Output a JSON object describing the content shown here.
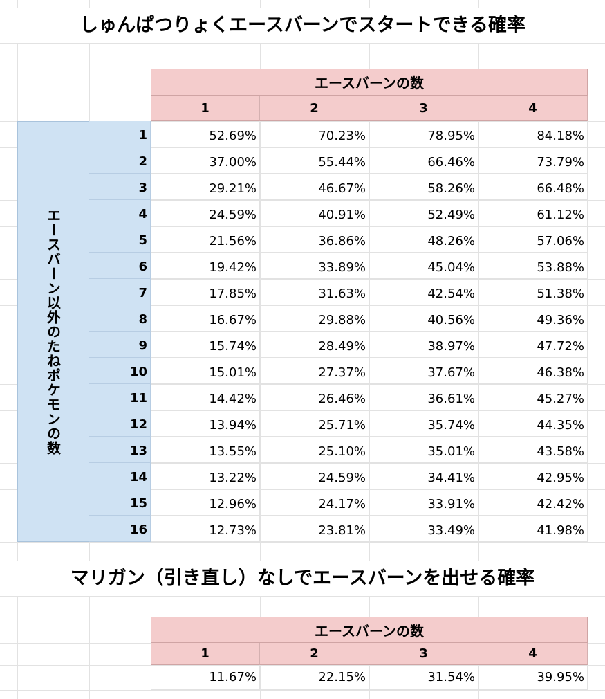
{
  "title1": "しゅんぱつりょくエースバーンでスタートできる確率",
  "table1": {
    "col_header": "エースバーンの数",
    "cols": [
      "1",
      "2",
      "3",
      "4"
    ],
    "row_header": "エースバーン以外のたねポケモンの数",
    "rows": [
      {
        "label": "1",
        "values": [
          "52.69%",
          "70.23%",
          "78.95%",
          "84.18%"
        ]
      },
      {
        "label": "2",
        "values": [
          "37.00%",
          "55.44%",
          "66.46%",
          "73.79%"
        ]
      },
      {
        "label": "3",
        "values": [
          "29.21%",
          "46.67%",
          "58.26%",
          "66.48%"
        ]
      },
      {
        "label": "4",
        "values": [
          "24.59%",
          "40.91%",
          "52.49%",
          "61.12%"
        ]
      },
      {
        "label": "5",
        "values": [
          "21.56%",
          "36.86%",
          "48.26%",
          "57.06%"
        ]
      },
      {
        "label": "6",
        "values": [
          "19.42%",
          "33.89%",
          "45.04%",
          "53.88%"
        ]
      },
      {
        "label": "7",
        "values": [
          "17.85%",
          "31.63%",
          "42.54%",
          "51.38%"
        ]
      },
      {
        "label": "8",
        "values": [
          "16.67%",
          "29.88%",
          "40.56%",
          "49.36%"
        ]
      },
      {
        "label": "9",
        "values": [
          "15.74%",
          "28.49%",
          "38.97%",
          "47.72%"
        ]
      },
      {
        "label": "10",
        "values": [
          "15.01%",
          "27.37%",
          "37.67%",
          "46.38%"
        ]
      },
      {
        "label": "11",
        "values": [
          "14.42%",
          "26.46%",
          "36.61%",
          "45.27%"
        ]
      },
      {
        "label": "12",
        "values": [
          "13.94%",
          "25.71%",
          "35.74%",
          "44.35%"
        ]
      },
      {
        "label": "13",
        "values": [
          "13.55%",
          "25.10%",
          "35.01%",
          "43.58%"
        ]
      },
      {
        "label": "14",
        "values": [
          "13.22%",
          "24.59%",
          "34.41%",
          "42.95%"
        ]
      },
      {
        "label": "15",
        "values": [
          "12.96%",
          "24.17%",
          "33.91%",
          "42.42%"
        ]
      },
      {
        "label": "16",
        "values": [
          "12.73%",
          "23.81%",
          "33.49%",
          "41.98%"
        ]
      }
    ]
  },
  "title2": "マリガン（引き直し）なしでエースバーンを出せる確率",
  "table2": {
    "col_header": "エースバーンの数",
    "cols": [
      "1",
      "2",
      "3",
      "4"
    ],
    "values": [
      "11.67%",
      "22.15%",
      "31.54%",
      "39.95%"
    ]
  },
  "colors": {
    "header_pink": "#f4cccc",
    "header_blue": "#cfe2f3",
    "gridline": "#e2e2e2"
  }
}
